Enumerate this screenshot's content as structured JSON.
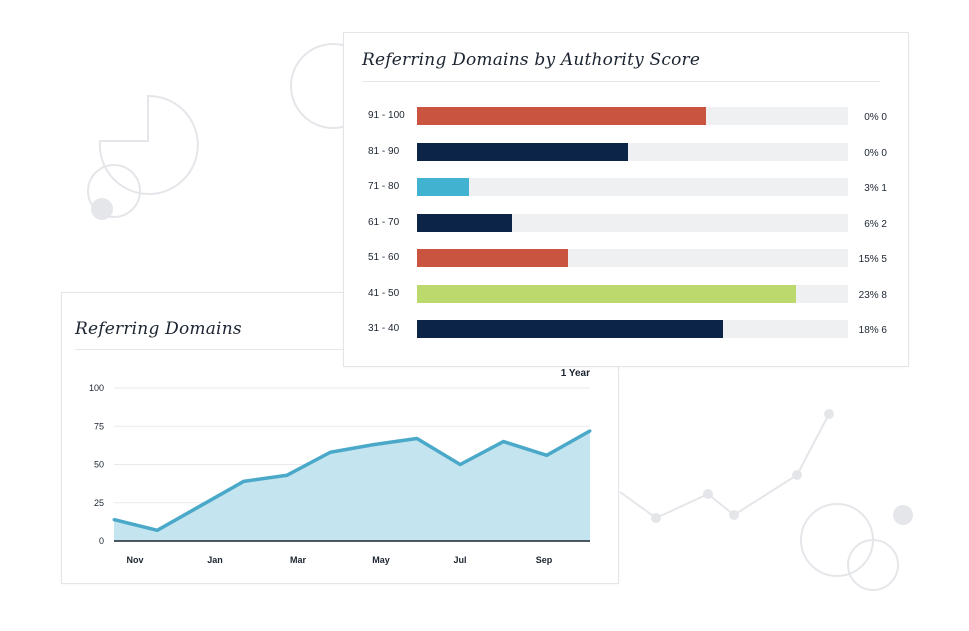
{
  "colors": {
    "red": "#c9543f",
    "navy": "#0c2447",
    "teal": "#41b2d0",
    "green": "#bcd96e",
    "track": "#eef0f2",
    "line": "#4aa9c9",
    "area": "#c4e4ef"
  },
  "authority": {
    "title": "Referring Domains by Authority Score"
  },
  "domains": {
    "title": "Referring Domains",
    "period": "1 Year"
  },
  "chart_data": [
    {
      "type": "bar",
      "orientation": "horizontal",
      "title": "Referring Domains by Authority Score",
      "categories": [
        "91 - 100",
        "81 - 90",
        "71 - 80",
        "61 - 70",
        "51 - 60",
        "41 - 50",
        "31 - 40"
      ],
      "values": [
        0.67,
        0.49,
        0.12,
        0.22,
        0.35,
        0.88,
        0.71
      ],
      "value_labels": [
        "0% 0",
        "0% 0",
        "3% 1",
        "6% 2",
        "15% 5",
        "23% 8",
        "18% 6"
      ],
      "bar_colors": [
        "red",
        "navy",
        "teal",
        "navy",
        "red",
        "green",
        "navy"
      ],
      "xlim": [
        0,
        1
      ],
      "grid": false
    },
    {
      "type": "area",
      "title": "Referring Domains",
      "x_labels": [
        "Nov",
        "Jan",
        "Mar",
        "May",
        "Jul",
        "Sep"
      ],
      "series": [
        {
          "values": [
            14,
            7,
            23,
            39,
            43,
            58,
            63,
            67,
            50,
            65,
            56,
            72
          ]
        }
      ],
      "yticks": [
        0,
        25,
        50,
        75,
        100
      ],
      "ylim": [
        0,
        100
      ],
      "grid": true
    }
  ]
}
